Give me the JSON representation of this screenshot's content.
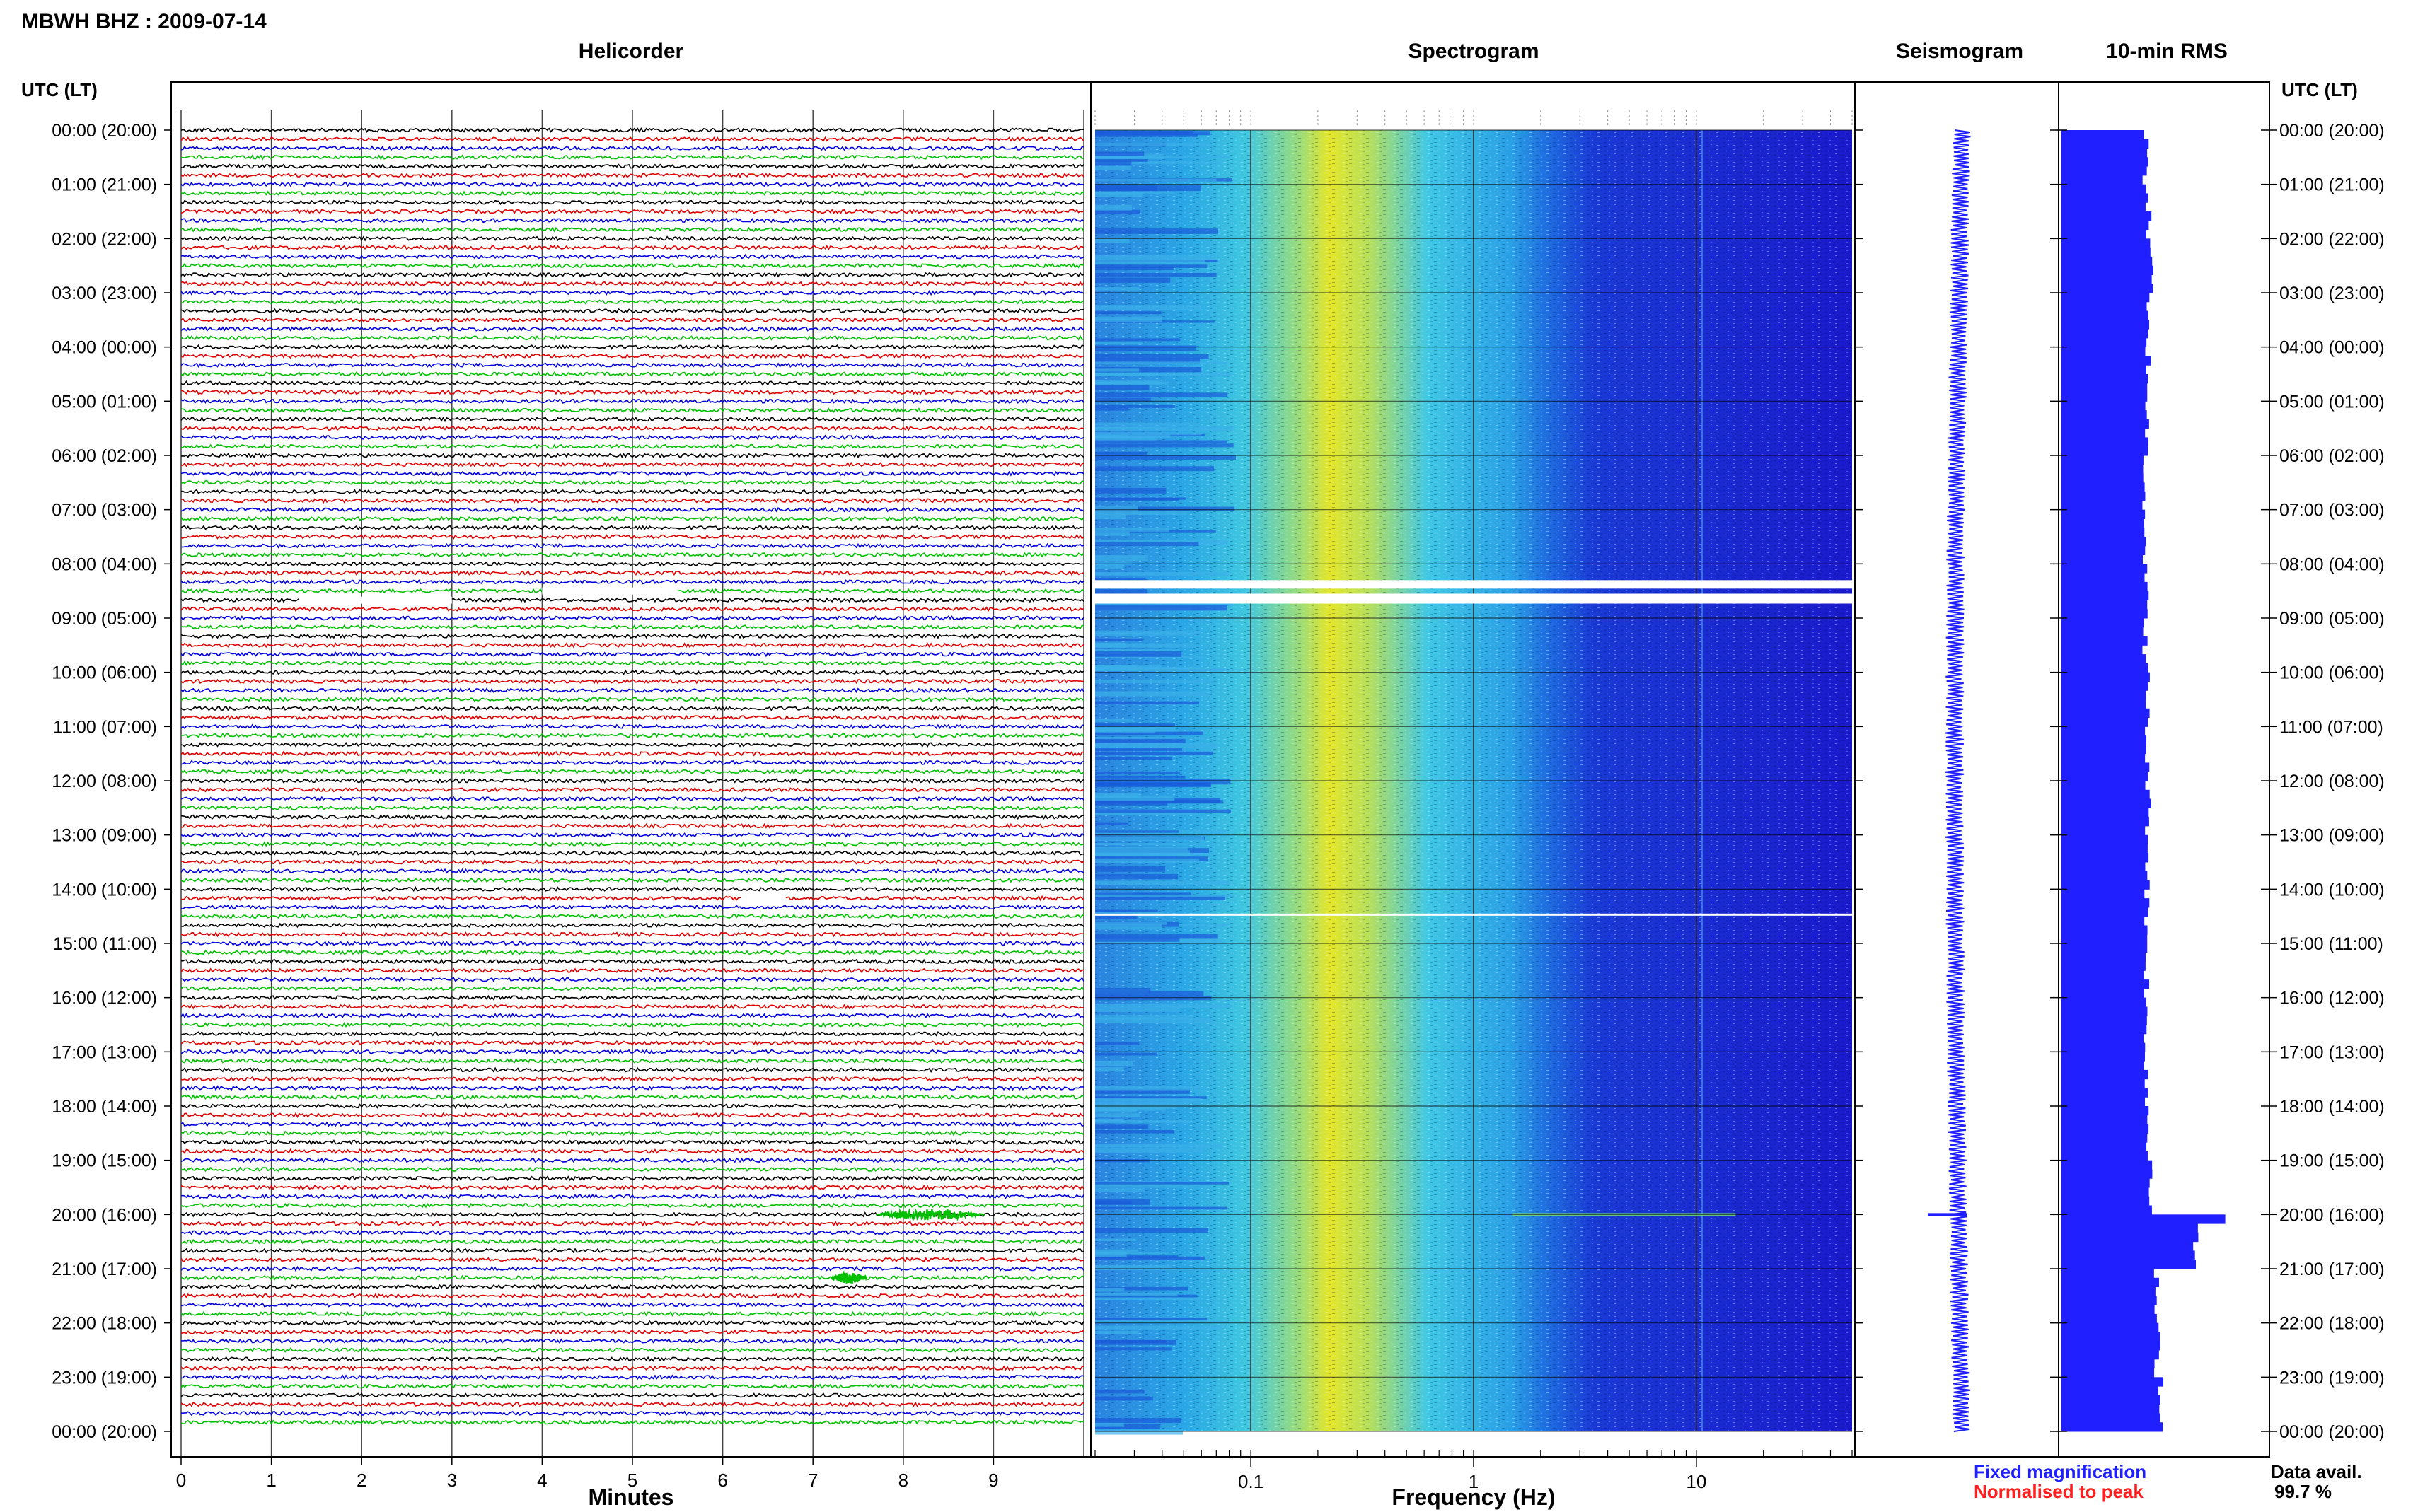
{
  "header": {
    "title": "MBWH BHZ : 2009-07-14"
  },
  "panels": {
    "helicorder": "Helicorder",
    "spectrogram": "Spectrogram",
    "seismogram": "Seismogram",
    "rms": "10-min RMS"
  },
  "time_axis": {
    "label": "UTC (LT)",
    "ticks": [
      "00:00 (20:00)",
      "01:00 (21:00)",
      "02:00 (22:00)",
      "03:00 (23:00)",
      "04:00 (00:00)",
      "05:00 (01:00)",
      "06:00 (02:00)",
      "07:00 (03:00)",
      "08:00 (04:00)",
      "09:00 (05:00)",
      "10:00 (06:00)",
      "11:00 (07:00)",
      "12:00 (08:00)",
      "13:00 (09:00)",
      "14:00 (10:00)",
      "15:00 (11:00)",
      "16:00 (12:00)",
      "17:00 (13:00)",
      "18:00 (14:00)",
      "19:00 (15:00)",
      "20:00 (16:00)",
      "21:00 (17:00)",
      "22:00 (18:00)",
      "23:00 (19:00)",
      "00:00 (20:00)"
    ]
  },
  "minutes_axis": {
    "label": "Minutes",
    "ticks": [
      "0",
      "1",
      "2",
      "3",
      "4",
      "5",
      "6",
      "7",
      "8",
      "9"
    ]
  },
  "frequency_axis": {
    "label": "Frequency (Hz)",
    "ticks": [
      "0.1",
      "1",
      "10"
    ]
  },
  "legend": {
    "fixed": "Fixed magnification",
    "normalised": "Normalised to peak",
    "fixed_color": "#1f1fff",
    "normalised_color": "#ff1f1f"
  },
  "availability": {
    "label": "Data avail.",
    "value": "99.7 %"
  },
  "chart_data": [
    {
      "type": "line",
      "name": "helicorder",
      "xlabel": "Minutes",
      "xlim": [
        0,
        10
      ],
      "rows_per_hour": 6,
      "trace_colors": [
        "#000000",
        "#e00000",
        "#0000e0",
        "#00c000"
      ],
      "gaps": [
        {
          "hour": 8.5,
          "from_min": 4.0,
          "to_min": 5.5
        },
        {
          "hour": 8.67,
          "from_min": 1.3,
          "to_min": 3.0
        },
        {
          "hour": 14.17,
          "from_min": 6.2,
          "to_min": 6.7
        }
      ],
      "events": [
        {
          "hour": 20.0,
          "from_min": 7.7,
          "to_min": 8.9,
          "color": "#00c000"
        },
        {
          "hour": 21.17,
          "from_min": 7.2,
          "to_min": 7.6,
          "color": "#00c000"
        }
      ]
    },
    {
      "type": "heatmap",
      "name": "spectrogram",
      "xlabel": "Frequency (Hz)",
      "x_scale": "log",
      "xlim": [
        0.02,
        50
      ],
      "data_gaps_hours": [
        8.45,
        8.7,
        14.5
      ],
      "colors": [
        "#1a1ad9",
        "#1a7ae0",
        "#26c2e6",
        "#9be07a",
        "#e6e81f"
      ]
    },
    {
      "type": "line",
      "name": "seismogram",
      "events": [
        {
          "hour": 20.0
        }
      ]
    },
    {
      "type": "bar",
      "name": "10-min RMS",
      "relative_values_by_hour": [
        0.62,
        0.64,
        0.66,
        0.63,
        0.64,
        0.63,
        0.62,
        0.62,
        0.62,
        0.62,
        0.63,
        0.63,
        0.64,
        0.64,
        0.63,
        0.63,
        0.62,
        0.63,
        0.64,
        0.67,
        1.0,
        0.7,
        0.71,
        0.74,
        0.75
      ],
      "color": "#1f1fff"
    }
  ]
}
